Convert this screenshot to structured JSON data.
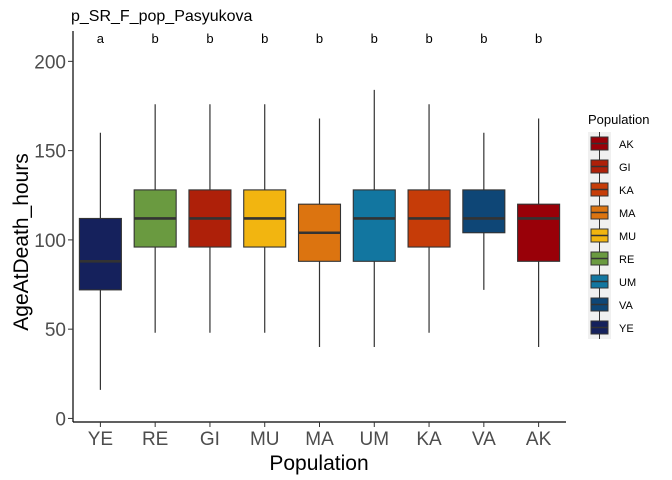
{
  "chart_data": {
    "type": "box",
    "title": "p_SR_F_pop_Pasyukova",
    "xlabel": "Population",
    "ylabel": "AgeAtDeath_hours",
    "ylim": [
      -2,
      217
    ],
    "yticks": [
      0,
      50,
      100,
      150,
      200
    ],
    "categories": [
      "YE",
      "RE",
      "GI",
      "MU",
      "MA",
      "UM",
      "KA",
      "VA",
      "AK"
    ],
    "significance_letters": [
      "a",
      "b",
      "b",
      "b",
      "b",
      "b",
      "b",
      "b",
      "b"
    ],
    "boxes": [
      {
        "label": "YE",
        "min": 16,
        "q1": 72,
        "median": 88,
        "q3": 112,
        "max": 160,
        "color": "#15215C"
      },
      {
        "label": "RE",
        "min": 48,
        "q1": 96,
        "median": 112,
        "q3": 128,
        "max": 176,
        "color": "#6A9A40"
      },
      {
        "label": "GI",
        "min": 48,
        "q1": 96,
        "median": 112,
        "q3": 128,
        "max": 176,
        "color": "#AE2009"
      },
      {
        "label": "MU",
        "min": 48,
        "q1": 96,
        "median": 112,
        "q3": 128,
        "max": 176,
        "color": "#F2B510"
      },
      {
        "label": "MA",
        "min": 40,
        "q1": 88,
        "median": 104,
        "q3": 120,
        "max": 168,
        "color": "#DC7410"
      },
      {
        "label": "UM",
        "min": 40,
        "q1": 88,
        "median": 112,
        "q3": 128,
        "max": 184,
        "color": "#1276A0"
      },
      {
        "label": "KA",
        "min": 48,
        "q1": 96,
        "median": 112,
        "q3": 128,
        "max": 176,
        "color": "#C63C08"
      },
      {
        "label": "VA",
        "min": 72,
        "q1": 104,
        "median": 112,
        "q3": 128,
        "max": 160,
        "color": "#0E4676"
      },
      {
        "label": "AK",
        "min": 40,
        "q1": 88,
        "median": 112,
        "q3": 120,
        "max": 168,
        "color": "#990008"
      }
    ],
    "legend": {
      "title": "Population",
      "position": "right",
      "entries": [
        {
          "label": "AK",
          "color": "#990008"
        },
        {
          "label": "GI",
          "color": "#AE2009"
        },
        {
          "label": "KA",
          "color": "#C63C08"
        },
        {
          "label": "MA",
          "color": "#DC7410"
        },
        {
          "label": "MU",
          "color": "#F2B510"
        },
        {
          "label": "RE",
          "color": "#6A9A40"
        },
        {
          "label": "UM",
          "color": "#1276A0"
        },
        {
          "label": "VA",
          "color": "#0E4676"
        },
        {
          "label": "YE",
          "color": "#15215C"
        }
      ]
    }
  }
}
